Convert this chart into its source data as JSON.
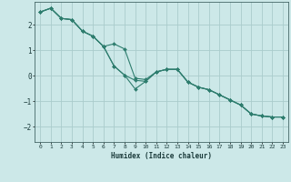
{
  "xlabel": "Humidex (Indice chaleur)",
  "bg_color": "#cce8e8",
  "grid_color": "#aacccc",
  "line_color": "#2e7d6e",
  "xlim": [
    -0.5,
    23.5
  ],
  "ylim": [
    -2.6,
    2.9
  ],
  "yticks": [
    -2,
    -1,
    0,
    1,
    2
  ],
  "xticks": [
    0,
    1,
    2,
    3,
    4,
    5,
    6,
    7,
    8,
    9,
    10,
    11,
    12,
    13,
    14,
    15,
    16,
    17,
    18,
    19,
    20,
    21,
    22,
    23
  ],
  "line1_x": [
    0,
    1,
    2,
    3,
    4,
    5,
    6,
    7,
    8,
    9,
    10,
    11,
    12,
    13,
    14,
    15,
    16,
    17,
    18,
    19,
    20,
    21,
    22,
    23
  ],
  "line1_y": [
    2.5,
    2.65,
    2.25,
    2.2,
    1.75,
    1.55,
    1.15,
    1.25,
    1.05,
    -0.1,
    -0.15,
    0.15,
    0.25,
    0.25,
    -0.25,
    -0.45,
    -0.55,
    -0.75,
    -0.95,
    -1.15,
    -1.5,
    -1.58,
    -1.62,
    -1.62
  ],
  "line2_x": [
    0,
    1,
    2,
    3,
    4,
    5,
    6,
    7,
    8,
    9,
    10,
    11,
    12,
    13,
    14,
    15,
    16,
    17,
    18,
    19,
    20,
    21,
    22,
    23
  ],
  "line2_y": [
    2.5,
    2.65,
    2.25,
    2.2,
    1.75,
    1.55,
    1.15,
    0.38,
    0.02,
    -0.18,
    -0.22,
    0.15,
    0.25,
    0.25,
    -0.25,
    -0.45,
    -0.55,
    -0.75,
    -0.95,
    -1.15,
    -1.5,
    -1.58,
    -1.62,
    -1.62
  ],
  "line3_x": [
    0,
    1,
    2,
    3,
    4,
    5,
    6,
    7,
    8,
    9,
    10,
    11,
    12,
    13,
    14,
    15,
    16,
    17,
    18,
    19,
    20,
    21,
    22,
    23
  ],
  "line3_y": [
    2.5,
    2.65,
    2.25,
    2.2,
    1.75,
    1.55,
    1.15,
    0.38,
    0.02,
    -0.52,
    -0.22,
    0.15,
    0.25,
    0.25,
    -0.25,
    -0.45,
    -0.55,
    -0.75,
    -0.95,
    -1.15,
    -1.5,
    -1.58,
    -1.62,
    -1.62
  ]
}
